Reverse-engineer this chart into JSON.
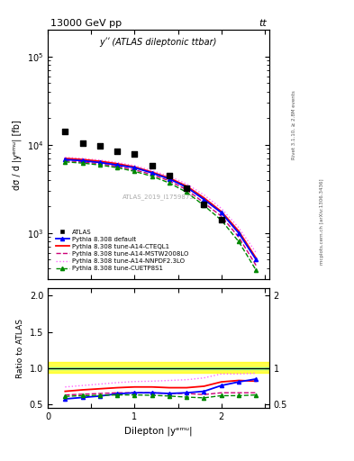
{
  "title_top": "13000 GeV pp",
  "title_right": "tt",
  "main_title": "yʹʹ (ATLAS dileptonic ttbar)",
  "watermark": "ATLAS_2019_I1759875",
  "rivet_label": "Rivet 3.1.10, ≥ 2.8M events",
  "arxiv_label": "mcplots.cern.ch [arXiv:1306.3436]",
  "xlabel": "Dilepton |yᵉᵐᵘ|",
  "ylabel": "dσ / d |yᵉᵐᵘ| [fb]",
  "ratio_ylabel": "Ratio to ATLAS",
  "x_data": [
    0.2,
    0.4,
    0.6,
    0.8,
    1.0,
    1.2,
    1.4,
    1.6,
    1.8,
    2.0,
    2.2,
    2.4
  ],
  "atlas_y": [
    14000,
    10500,
    9800,
    8500,
    7800,
    5800,
    4500,
    3200,
    2100,
    1400,
    null,
    null
  ],
  "pythia_default_y": [
    6800,
    6600,
    6300,
    5900,
    5500,
    4800,
    4100,
    3300,
    2400,
    1700,
    1000,
    500
  ],
  "pythia_cteql1_y": [
    7000,
    6800,
    6500,
    6100,
    5600,
    4900,
    4200,
    3400,
    2500,
    1750,
    1050,
    520
  ],
  "pythia_mstw_y": [
    6600,
    6400,
    6100,
    5700,
    5200,
    4600,
    3900,
    3100,
    2200,
    1550,
    900,
    430
  ],
  "pythia_nnpdf_y": [
    7200,
    7000,
    6700,
    6300,
    5800,
    5100,
    4400,
    3600,
    2700,
    1900,
    1150,
    600
  ],
  "pythia_cuetp_y": [
    6400,
    6200,
    5900,
    5500,
    5000,
    4400,
    3700,
    2900,
    2050,
    1400,
    800,
    380
  ],
  "ratio_default": [
    0.575,
    0.595,
    0.615,
    0.645,
    0.66,
    0.66,
    0.65,
    0.66,
    0.68,
    0.76,
    0.81,
    0.85
  ],
  "ratio_cteql1": [
    0.68,
    0.7,
    0.715,
    0.73,
    0.74,
    0.74,
    0.73,
    0.73,
    0.75,
    0.81,
    0.83,
    0.82
  ],
  "ratio_mstw": [
    0.63,
    0.64,
    0.65,
    0.66,
    0.66,
    0.66,
    0.65,
    0.65,
    0.635,
    0.66,
    0.66,
    0.66
  ],
  "ratio_nnpdf": [
    0.74,
    0.76,
    0.78,
    0.8,
    0.815,
    0.82,
    0.83,
    0.84,
    0.865,
    0.92,
    0.92,
    0.93
  ],
  "ratio_cuetp": [
    0.61,
    0.62,
    0.625,
    0.63,
    0.63,
    0.625,
    0.615,
    0.6,
    0.59,
    0.62,
    0.62,
    0.63
  ],
  "atlas_ratio_band_lo": 0.94,
  "atlas_ratio_band_hi": 1.08,
  "atlas_ratio_inner_lo": 0.985,
  "atlas_ratio_inner_hi": 1.005,
  "colors": {
    "atlas": "#000000",
    "default": "#0000ff",
    "cteql1": "#ff0000",
    "mstw": "#cc0077",
    "nnpdf": "#ff66ff",
    "cuetp": "#008800"
  },
  "ylim_main": [
    300,
    200000
  ],
  "ylim_ratio": [
    0.45,
    2.1
  ],
  "xlim": [
    0.0,
    2.55
  ]
}
